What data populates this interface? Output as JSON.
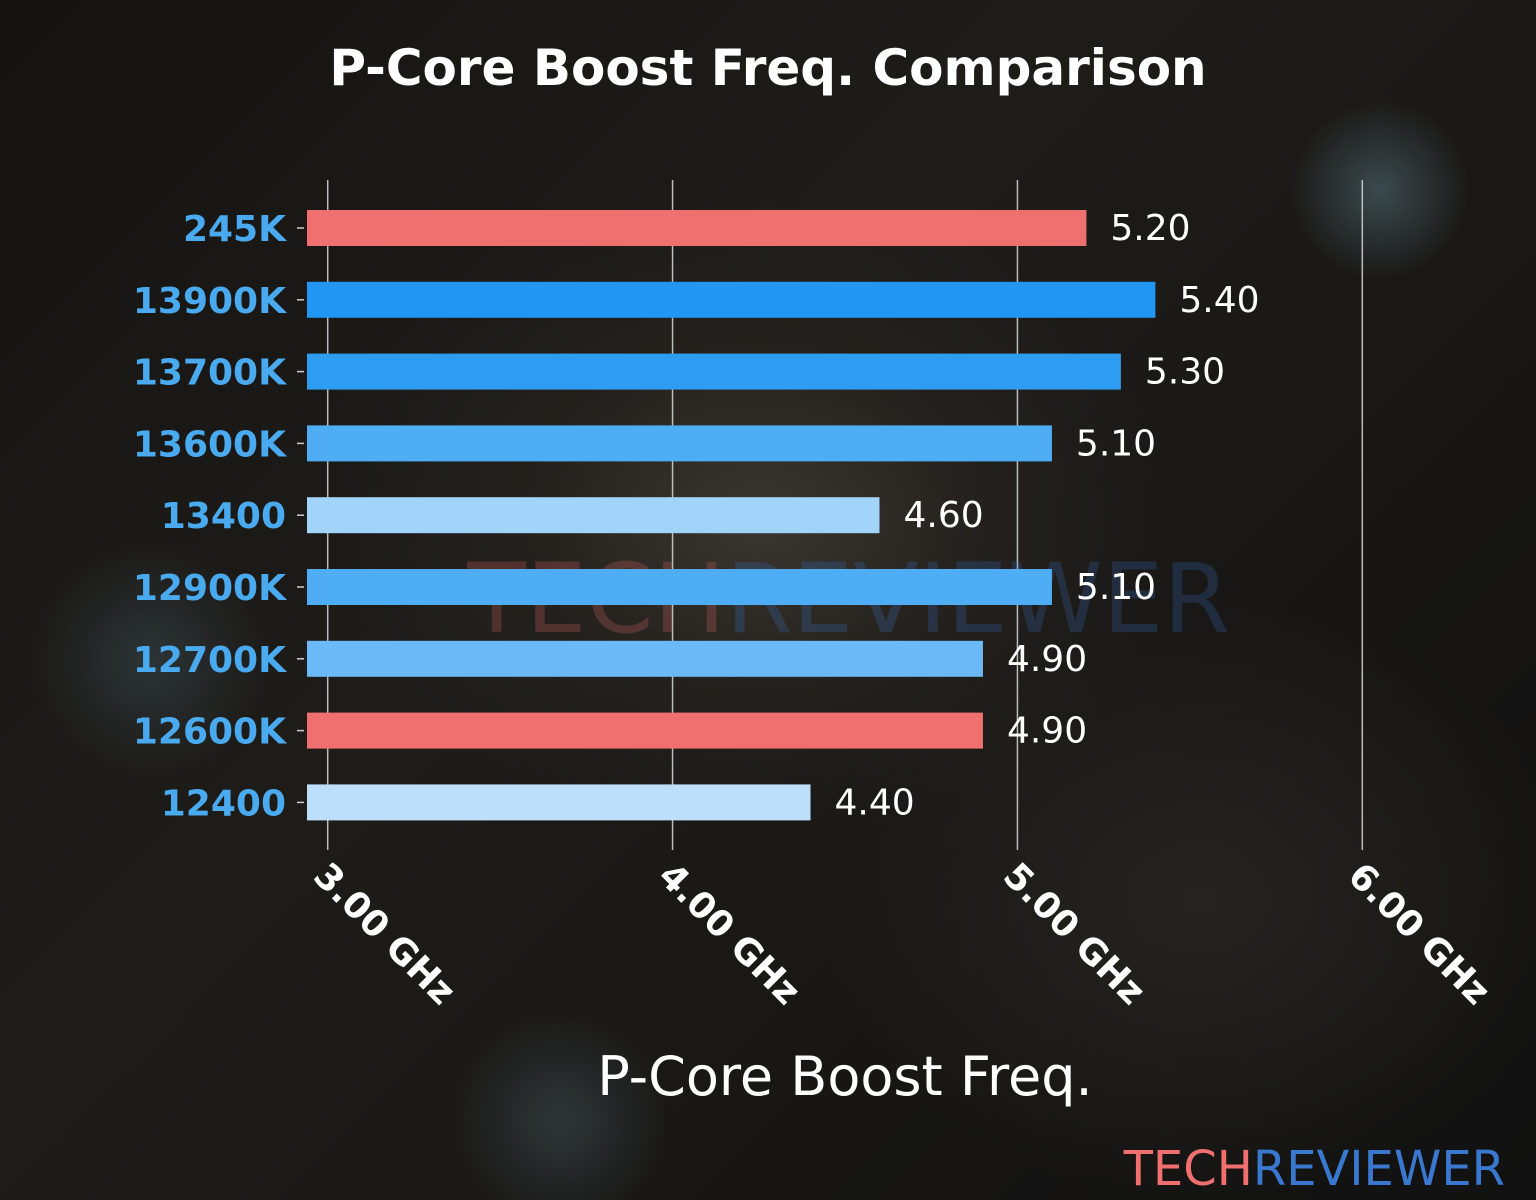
{
  "chart_data": {
    "type": "bar",
    "orientation": "horizontal",
    "title": "P-Core Boost Freq. Comparison",
    "xlabel": "P-Core Boost Freq.",
    "ylabel": "",
    "categories": [
      "245K",
      "13900K",
      "13700K",
      "13600K",
      "13400",
      "12900K",
      "12700K",
      "12600K",
      "12400"
    ],
    "values": [
      5.2,
      5.4,
      5.3,
      5.1,
      4.6,
      5.1,
      4.9,
      4.9,
      4.4
    ],
    "value_labels": [
      "5.20",
      "5.40",
      "5.30",
      "5.10",
      "4.60",
      "5.10",
      "4.90",
      "4.90",
      "4.40"
    ],
    "bar_colors": [
      "#f07070",
      "#2196f3",
      "#2e9cf0",
      "#4fadf5",
      "#a2d3f9",
      "#4fadf5",
      "#6bbaf7",
      "#f07070",
      "#bcdffb"
    ],
    "xticks": [
      3,
      4,
      5,
      6
    ],
    "xtick_labels": [
      "3.00 GHz",
      "4.00 GHz",
      "5.00 GHz",
      "6.00 GHz"
    ],
    "xlim": [
      2.94,
      6.06
    ],
    "grid": "vertical",
    "category_label_color": "#4aaaf0"
  },
  "watermark": {
    "part1": "TECH",
    "part2": "REVIEWER",
    "color1": "#f07070",
    "color2": "#3a78d0"
  }
}
